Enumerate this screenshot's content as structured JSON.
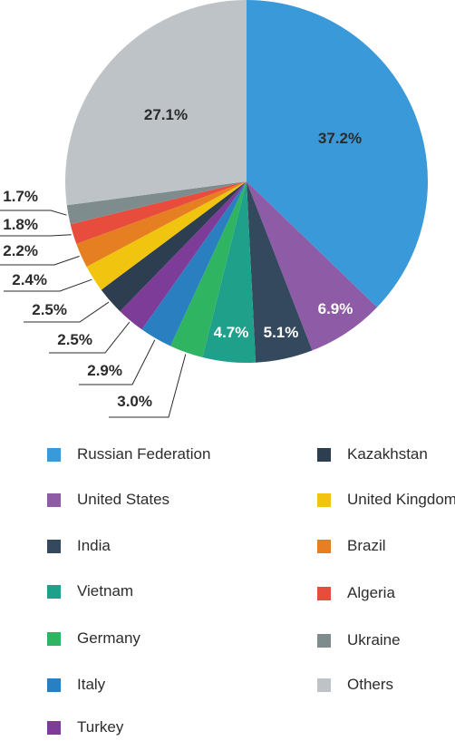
{
  "chart_data": {
    "type": "pie",
    "start_angle_deg": 0,
    "direction": "clockwise",
    "legend_placement": "bottom",
    "slices": [
      {
        "name": "Russian Federation",
        "value": 37.2,
        "label": "37.2%",
        "color": "#3a9ad9"
      },
      {
        "name": "United States",
        "value": 6.9,
        "label": "6.9%",
        "color": "#8e5ba6"
      },
      {
        "name": "India",
        "value": 5.1,
        "label": "5.1%",
        "color": "#34495e"
      },
      {
        "name": "Vietnam",
        "value": 4.7,
        "label": "4.7%",
        "color": "#1fa08b"
      },
      {
        "name": "Germany",
        "value": 3.0,
        "label": "3.0%",
        "color": "#2fb461"
      },
      {
        "name": "Italy",
        "value": 2.9,
        "label": "2.9%",
        "color": "#2a7fc1"
      },
      {
        "name": "Turkey",
        "value": 2.5,
        "label": "2.5%",
        "color": "#7d3c98"
      },
      {
        "name": "Kazakhstan",
        "value": 2.5,
        "label": "2.5%",
        "color": "#2c3e50"
      },
      {
        "name": "United Kingdom",
        "value": 2.4,
        "label": "2.4%",
        "color": "#f1c40f"
      },
      {
        "name": "Brazil",
        "value": 2.2,
        "label": "2.2%",
        "color": "#e67e22"
      },
      {
        "name": "Algeria",
        "value": 1.8,
        "label": "1.8%",
        "color": "#e74c3c"
      },
      {
        "name": "Ukraine",
        "value": 1.7,
        "label": "1.7%",
        "color": "#7f8c8d"
      },
      {
        "name": "Others",
        "value": 27.1,
        "label": "27.1%",
        "color": "#bdc3c7"
      }
    ]
  },
  "legend": {
    "items": [
      {
        "label": "Russian Federation",
        "color": "#3a9ad9"
      },
      {
        "label": "United States",
        "color": "#8e5ba6"
      },
      {
        "label": "India",
        "color": "#34495e"
      },
      {
        "label": "Vietnam",
        "color": "#1fa08b"
      },
      {
        "label": "Germany",
        "color": "#2fb461"
      },
      {
        "label": "Italy",
        "color": "#2a7fc1"
      },
      {
        "label": "Turkey",
        "color": "#7d3c98"
      },
      {
        "label": "Kazakhstan",
        "color": "#2c3e50"
      },
      {
        "label": "United Kingdom",
        "color": "#f1c40f"
      },
      {
        "label": "Brazil",
        "color": "#e67e22"
      },
      {
        "label": "Algeria",
        "color": "#e74c3c"
      },
      {
        "label": "Ukraine",
        "color": "#7f8c8d"
      },
      {
        "label": "Others",
        "color": "#bdc3c7"
      }
    ]
  }
}
